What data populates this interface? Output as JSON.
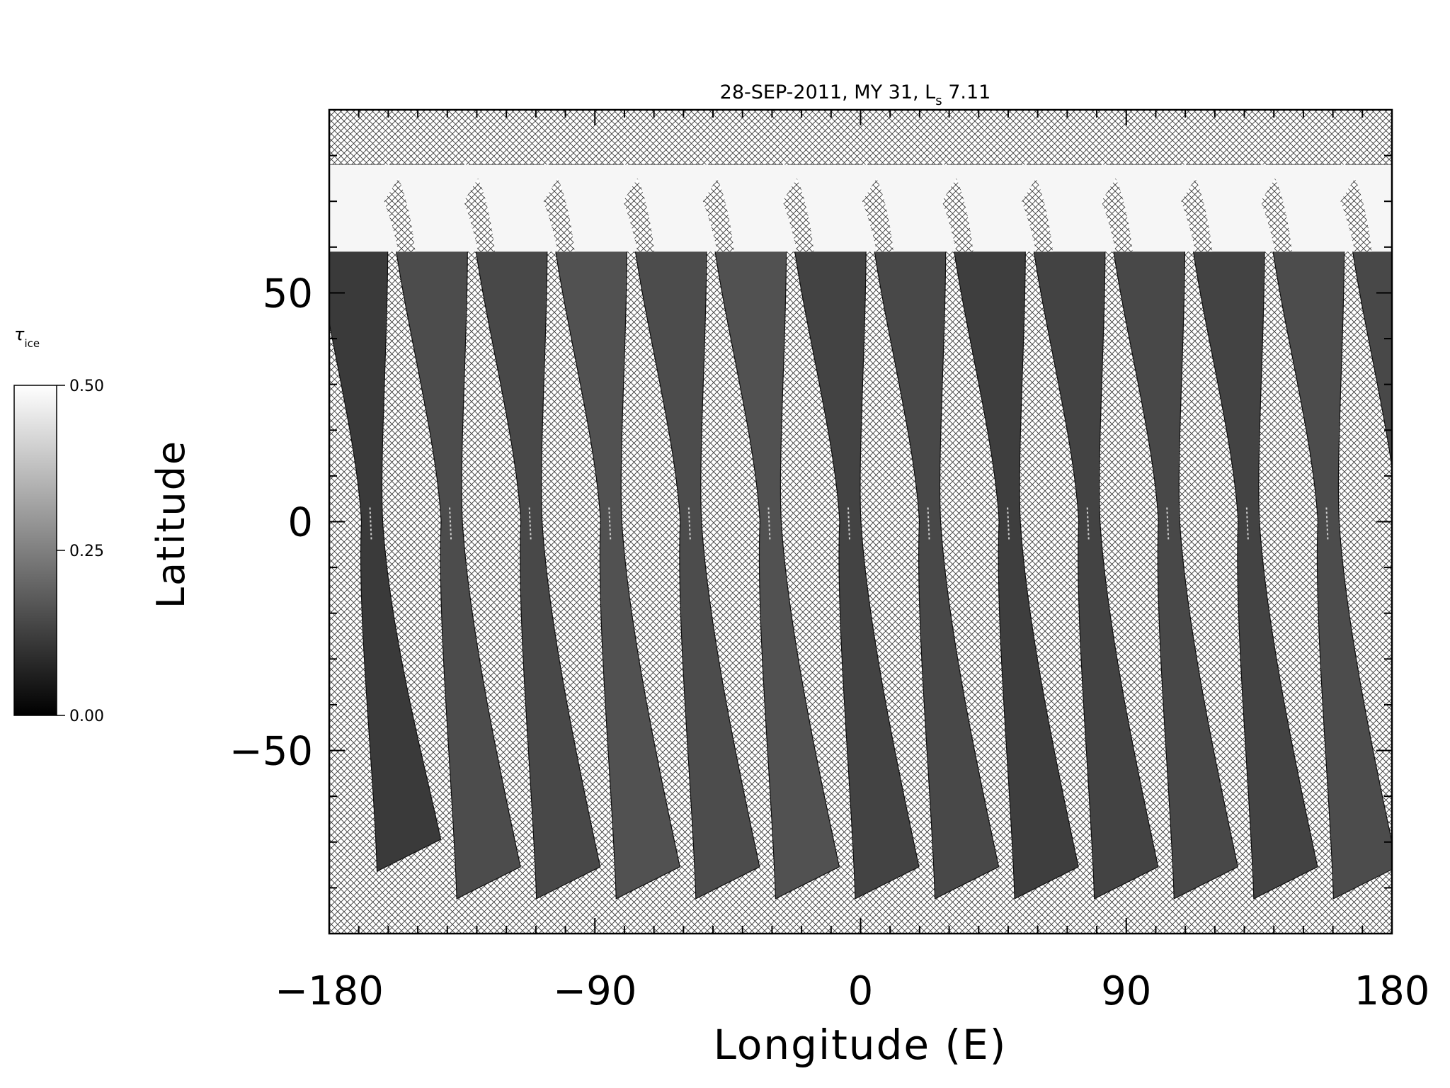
{
  "chart_data": {
    "type": "heatmap",
    "title": "28-SEP-2011, MY 31,  L",
    "title_subscript": "s",
    "title_value": " 7.11",
    "xlabel": "Longitude (E)",
    "ylabel": "Latitude",
    "xlim": [
      -180,
      180
    ],
    "ylim": [
      -90,
      90
    ],
    "x_ticks": [
      -180,
      -90,
      0,
      90,
      180
    ],
    "x_tick_labels": [
      "−180",
      "−90",
      "0",
      "90",
      "180"
    ],
    "y_ticks": [
      -50,
      0,
      50
    ],
    "y_tick_labels": [
      "−50",
      "0",
      "50"
    ],
    "x_minor_step": 10,
    "y_minor_step": 10,
    "no_data_fill": "crosshatch",
    "colormap": "grayscale",
    "colorbar": {
      "symbol": "τ",
      "subscript": "ice",
      "min": 0.0,
      "max": 0.5,
      "ticks": [
        0.0,
        0.25,
        0.5
      ],
      "tick_labels": [
        "0.00",
        "0.25",
        "0.50"
      ],
      "low_color": "#000000",
      "high_color": "#ffffff"
    },
    "polar_ice_region": {
      "lat_max": 78,
      "lat_min": 59,
      "value": 0.5
    },
    "swaths": [
      {
        "center_lon": -171,
        "lat_north": 78,
        "lat_south": -64,
        "mean_tau": 0.08
      },
      {
        "center_lon": -144,
        "lat_north": 78,
        "lat_south": -70,
        "mean_tau": 0.12
      },
      {
        "center_lon": -117,
        "lat_north": 78,
        "lat_south": -70,
        "mean_tau": 0.11
      },
      {
        "center_lon": -90,
        "lat_north": 78,
        "lat_south": -70,
        "mean_tau": 0.13
      },
      {
        "center_lon": -63,
        "lat_north": 78,
        "lat_south": -70,
        "mean_tau": 0.12
      },
      {
        "center_lon": -36,
        "lat_north": 78,
        "lat_south": -70,
        "mean_tau": 0.13
      },
      {
        "center_lon": -9,
        "lat_north": 78,
        "lat_south": -70,
        "mean_tau": 0.1
      },
      {
        "center_lon": 18,
        "lat_north": 78,
        "lat_south": -70,
        "mean_tau": 0.11
      },
      {
        "center_lon": 45,
        "lat_north": 78,
        "lat_south": -70,
        "mean_tau": 0.09
      },
      {
        "center_lon": 72,
        "lat_north": 78,
        "lat_south": -70,
        "mean_tau": 0.1
      },
      {
        "center_lon": 99,
        "lat_north": 78,
        "lat_south": -70,
        "mean_tau": 0.11
      },
      {
        "center_lon": 126,
        "lat_north": 78,
        "lat_south": -70,
        "mean_tau": 0.1
      },
      {
        "center_lon": 153,
        "lat_north": 78,
        "lat_south": -70,
        "mean_tau": 0.12
      },
      {
        "center_lon": 180,
        "lat_north": 78,
        "lat_south": -70,
        "mean_tau": 0.11
      }
    ]
  }
}
